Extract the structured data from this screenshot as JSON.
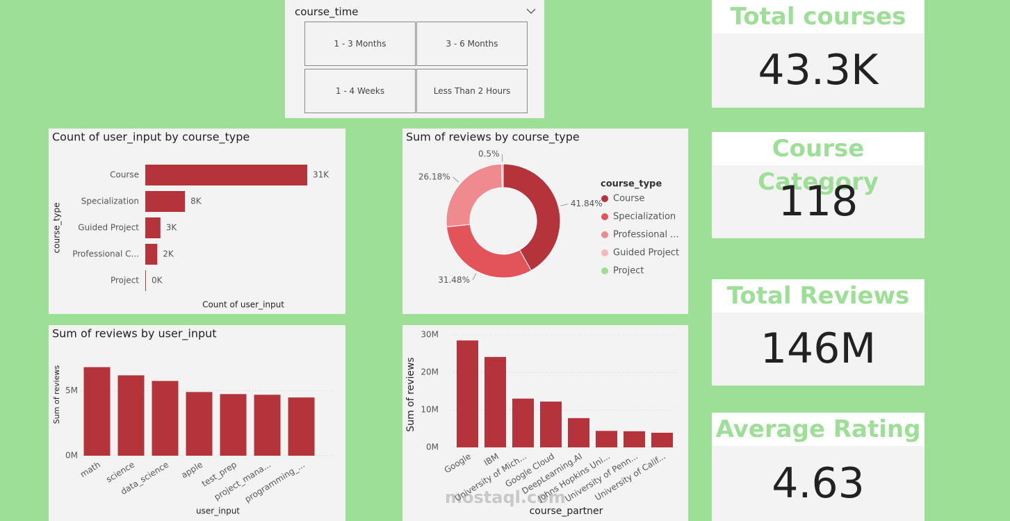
{
  "slicer": {
    "title": "course_time",
    "options": [
      "1 - 3 Months",
      "3 - 6 Months",
      "1 - 4 Weeks",
      "Less Than 2 Hours"
    ]
  },
  "cards": [
    {
      "title": "Total courses",
      "value": "43.3K"
    },
    {
      "title": "Course Category",
      "value": "118"
    },
    {
      "title": "Total Reviews",
      "value": "146M"
    },
    {
      "title": "Average Rating",
      "value": "4.63"
    }
  ],
  "watermark": "mostaql.com",
  "chart_data": [
    {
      "type": "bar",
      "horizontal": true,
      "title": "Count of user_input by course_type",
      "x_label": "Count of user_input",
      "y_label": "course_type",
      "categories": [
        "Course",
        "Specialization",
        "Guided Project",
        "Professional C...",
        "Project"
      ],
      "values": [
        31000,
        7600,
        2900,
        2300,
        130
      ],
      "value_labels": [
        "31K",
        "8K",
        "3K",
        "2K",
        "0K"
      ],
      "color": "#b5343c"
    },
    {
      "type": "pie",
      "donut": true,
      "title": "Sum of reviews by course_type",
      "legend_title": "course_type",
      "legend": "right",
      "categories": [
        "Course",
        "Specialization",
        "Professional ...",
        "Guided Project",
        "Project"
      ],
      "values": [
        41.84,
        31.48,
        26.18,
        0.5,
        0
      ],
      "value_labels": [
        "41.84%",
        "31.48%",
        "26.18%",
        "0.5%",
        null
      ],
      "colors": [
        "#b5343c",
        "#e3545a",
        "#ef8a8f",
        "#f5b8bb",
        "#9bdf93"
      ]
    },
    {
      "type": "bar",
      "title": "Sum of reviews by user_input",
      "x_label": "user_input",
      "y_label": "Sum of reviews",
      "categories": [
        "math",
        "science",
        "data_science",
        "apple",
        "test_prep",
        "project_mana...",
        "programming_..."
      ],
      "values": [
        6800000,
        6170000,
        5740000,
        4890000,
        4730000,
        4680000,
        4470000
      ],
      "color": "#b5343c",
      "ylim": [
        0,
        7200000
      ],
      "yticks": [
        {
          "value": 0,
          "label": "0M"
        },
        {
          "value": 5000000,
          "label": "5M"
        }
      ],
      "grid": true
    },
    {
      "type": "bar",
      "x_label": "course_partner",
      "y_label": "Sum of reviews",
      "categories": [
        "Google",
        "IBM",
        "University of Mich...",
        "Google Cloud",
        "DeepLearning.AI",
        "Johns Hopkins Uni...",
        "University of Penn...",
        "University of Calif..."
      ],
      "values": [
        28500000,
        24100000,
        13000000,
        12200000,
        7800000,
        4400000,
        4300000,
        3900000
      ],
      "color": "#b5343c",
      "ylim": [
        0,
        30500000
      ],
      "yticks": [
        {
          "value": 0,
          "label": "0M"
        },
        {
          "value": 10000000,
          "label": "10M"
        },
        {
          "value": 20000000,
          "label": "20M"
        },
        {
          "value": 30000000,
          "label": "30M"
        }
      ],
      "grid": true
    }
  ]
}
